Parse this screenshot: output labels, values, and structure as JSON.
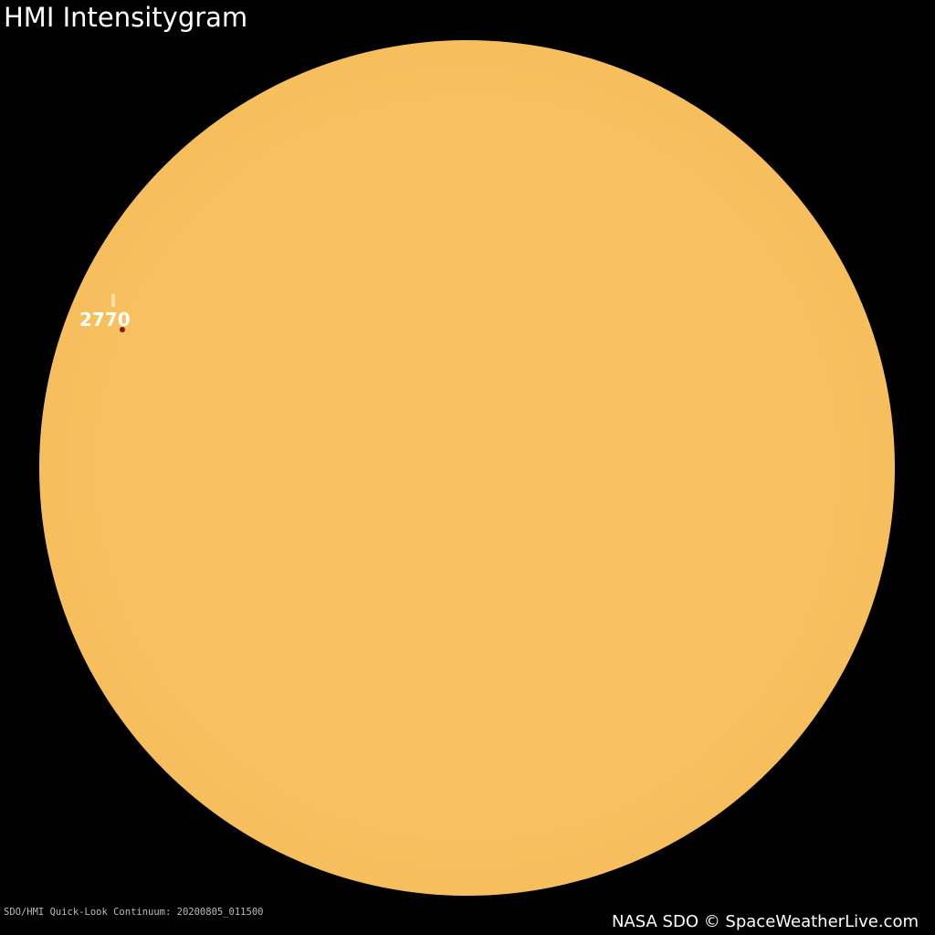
{
  "title": "HMI Intensitygram",
  "sun_color": "#f7c060",
  "active_regions": [
    {
      "label": "2770"
    }
  ],
  "caption": "SDO/HMI Quick-Look Continuum: 20200805_011500",
  "credit": "NASA SDO © SpaceWeatherLive.com"
}
